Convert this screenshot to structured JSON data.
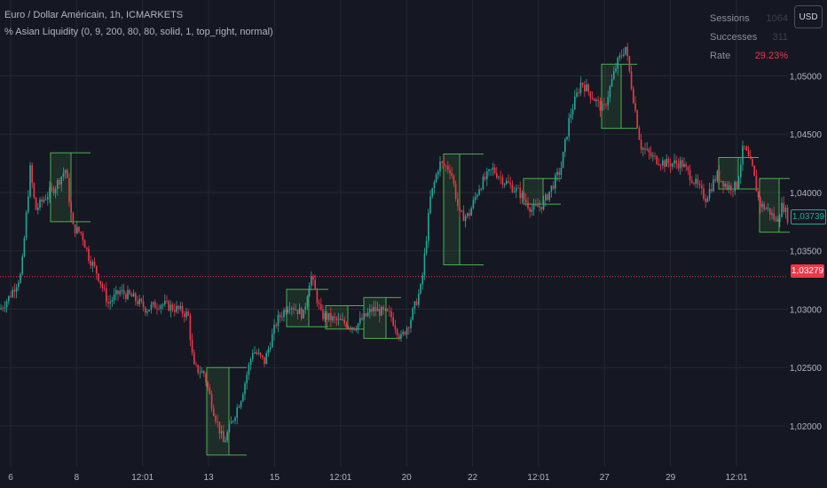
{
  "header": {
    "title": "Euro / Dollar Américain, 1h, ICMARKETS",
    "indicator": "% Asian Liquidity (0, 9, 200, 80, 80, solid, 1, top_right, normal)"
  },
  "stats": [
    {
      "label": "Sessions",
      "value": "1064"
    },
    {
      "label": "Successes",
      "value": "311"
    },
    {
      "label": "Rate",
      "value": "29.23%"
    }
  ],
  "currency_button": "USD",
  "price_tags": {
    "last": "1,03739",
    "line": "1,03279"
  },
  "colors": {
    "background": "#151822",
    "up": "#26a69a",
    "down": "#f23645",
    "box_border": "#4caf50",
    "box_fill": "rgba(76,175,80,0.14)",
    "grid": "#242733"
  },
  "chart_data": {
    "type": "candlestick",
    "title": "Euro / Dollar Américain, 1h, ICMARKETS",
    "ylim": [
      1.0165,
      1.0565
    ],
    "y_ticks": [
      "1,05000",
      "1,04500",
      "1,04000",
      "1,03500",
      "1,03000",
      "1,02500",
      "1,02000"
    ],
    "y_tick_values": [
      1.05,
      1.045,
      1.04,
      1.035,
      1.03,
      1.025,
      1.02
    ],
    "x_ticks": [
      "6",
      "8",
      "12:01",
      "13",
      "15",
      "12:01",
      "20",
      "22",
      "12:01",
      "27",
      "29",
      "12:01"
    ],
    "grid": true,
    "horizontal_line": 1.03279,
    "last_price": 1.03739,
    "price_path": [
      [
        0,
        1.03
      ],
      [
        10,
        1.031
      ],
      [
        24,
        1.033
      ],
      [
        34,
        1.042
      ],
      [
        40,
        1.0385
      ],
      [
        50,
        1.0395
      ],
      [
        62,
        1.0405
      ],
      [
        74,
        1.042
      ],
      [
        82,
        1.037
      ],
      [
        92,
        1.0365
      ],
      [
        100,
        1.0345
      ],
      [
        110,
        1.033
      ],
      [
        122,
        1.0305
      ],
      [
        135,
        1.0315
      ],
      [
        150,
        1.031
      ],
      [
        165,
        1.03
      ],
      [
        180,
        1.0305
      ],
      [
        200,
        1.03
      ],
      [
        212,
        1.0295
      ],
      [
        218,
        1.025
      ],
      [
        230,
        1.0245
      ],
      [
        240,
        1.0215
      ],
      [
        252,
        1.0185
      ],
      [
        262,
        1.0205
      ],
      [
        272,
        1.0225
      ],
      [
        285,
        1.0265
      ],
      [
        298,
        1.0255
      ],
      [
        312,
        1.029
      ],
      [
        326,
        1.0305
      ],
      [
        342,
        1.0295
      ],
      [
        350,
        1.033
      ],
      [
        362,
        1.0295
      ],
      [
        380,
        1.029
      ],
      [
        400,
        1.0285
      ],
      [
        420,
        1.03
      ],
      [
        440,
        1.0295
      ],
      [
        452,
        1.0275
      ],
      [
        462,
        1.029
      ],
      [
        475,
        1.032
      ],
      [
        485,
        1.0395
      ],
      [
        495,
        1.0425
      ],
      [
        508,
        1.042
      ],
      [
        518,
        1.038
      ],
      [
        528,
        1.038
      ],
      [
        540,
        1.0405
      ],
      [
        555,
        1.042
      ],
      [
        568,
        1.041
      ],
      [
        585,
        1.04
      ],
      [
        600,
        1.0385
      ],
      [
        612,
        1.039
      ],
      [
        622,
        1.0405
      ],
      [
        632,
        1.042
      ],
      [
        642,
        1.0465
      ],
      [
        655,
        1.0495
      ],
      [
        665,
        1.0485
      ],
      [
        680,
        1.047
      ],
      [
        695,
        1.051
      ],
      [
        705,
        1.0525
      ],
      [
        712,
        1.049
      ],
      [
        722,
        1.044
      ],
      [
        735,
        1.043
      ],
      [
        750,
        1.0425
      ],
      [
        768,
        1.0425
      ],
      [
        782,
        1.041
      ],
      [
        795,
        1.0395
      ],
      [
        808,
        1.0415
      ],
      [
        820,
        1.0405
      ],
      [
        830,
        1.0405
      ],
      [
        838,
        1.044
      ],
      [
        848,
        1.042
      ],
      [
        856,
        1.039
      ],
      [
        866,
        1.0385
      ],
      [
        875,
        1.0375
      ],
      [
        882,
        1.039
      ],
      [
        890,
        1.0374
      ]
    ],
    "sessions": [
      {
        "x0": 57,
        "x1": 80,
        "x_end": 102,
        "high": 1.0434,
        "low": 1.0375
      },
      {
        "x0": 233,
        "x1": 258,
        "x_end": 278,
        "high": 1.025,
        "low": 1.0175
      },
      {
        "x0": 323,
        "x1": 348,
        "x_end": 370,
        "high": 1.0317,
        "low": 1.0285
      },
      {
        "x0": 367,
        "x1": 392,
        "x_end": 410,
        "high": 1.0303,
        "low": 1.0283
      },
      {
        "x0": 410,
        "x1": 435,
        "x_end": 452,
        "high": 1.031,
        "low": 1.0275
      },
      {
        "x0": 500,
        "x1": 518,
        "x_end": 545,
        "high": 1.0433,
        "low": 1.0338
      },
      {
        "x0": 590,
        "x1": 612,
        "x_end": 632,
        "high": 1.0412,
        "low": 1.039
      },
      {
        "x0": 678,
        "x1": 700,
        "x_end": 718,
        "high": 1.051,
        "low": 1.0455
      },
      {
        "x0": 810,
        "x1": 832,
        "x_end": 855,
        "high": 1.043,
        "low": 1.0403
      },
      {
        "x0": 856,
        "x1": 878,
        "x_end": 890,
        "high": 1.0412,
        "low": 1.0366
      }
    ]
  }
}
